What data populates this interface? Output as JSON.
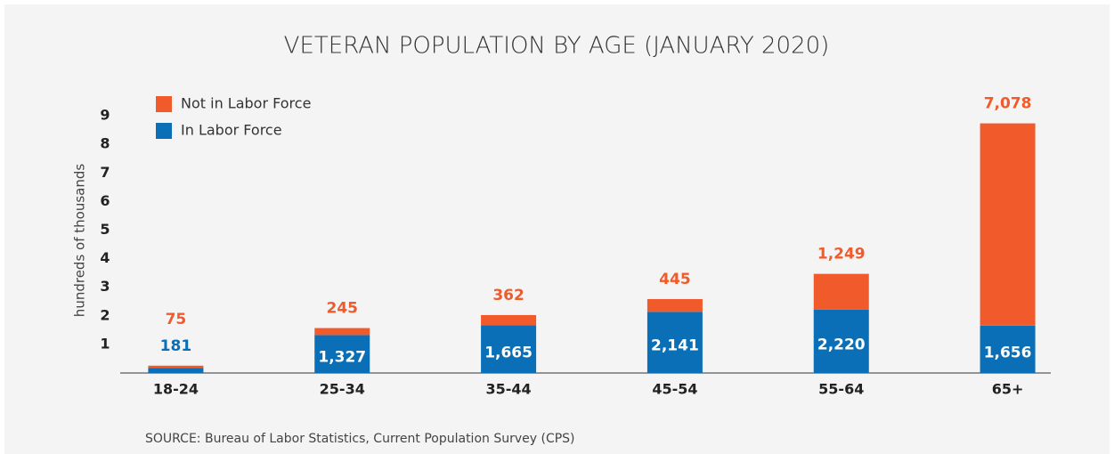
{
  "chart_data": {
    "type": "stacked_bar",
    "title": "VETERAN POPULATION BY AGE (JANUARY 2020)",
    "y_label": "hundreds of thousands",
    "source": "SOURCE: Bureau of Labor Statistics, Current Population Survey (CPS)",
    "categories": [
      "18-24",
      "25-34",
      "35-44",
      "45-54",
      "55-64",
      "65+"
    ],
    "series": [
      {
        "name": "In Labor Force",
        "color": "#0a6fb6",
        "values": [
          181,
          1327,
          1665,
          2141,
          2220,
          1656
        ],
        "value_labels": [
          "181",
          "1,327",
          "1,665",
          "2,141",
          "2,220",
          "1,656"
        ]
      },
      {
        "name": "Not in Labor Force",
        "color": "#f15a2b",
        "values": [
          75,
          245,
          362,
          445,
          1249,
          7078
        ],
        "value_labels": [
          "75",
          "245",
          "362",
          "445",
          "1,249",
          "7,078"
        ]
      }
    ],
    "ylim": [
      0,
      9500
    ],
    "yticks": [
      {
        "value": 1000,
        "label": "1"
      },
      {
        "value": 2000,
        "label": "2"
      },
      {
        "value": 3000,
        "label": "3"
      },
      {
        "value": 4000,
        "label": "4"
      },
      {
        "value": 5000,
        "label": "5"
      },
      {
        "value": 6000,
        "label": "6"
      },
      {
        "value": 7000,
        "label": "7"
      },
      {
        "value": 8000,
        "label": "8"
      },
      {
        "value": 9000,
        "label": "9"
      }
    ],
    "grid": false,
    "legend": "top-left"
  }
}
